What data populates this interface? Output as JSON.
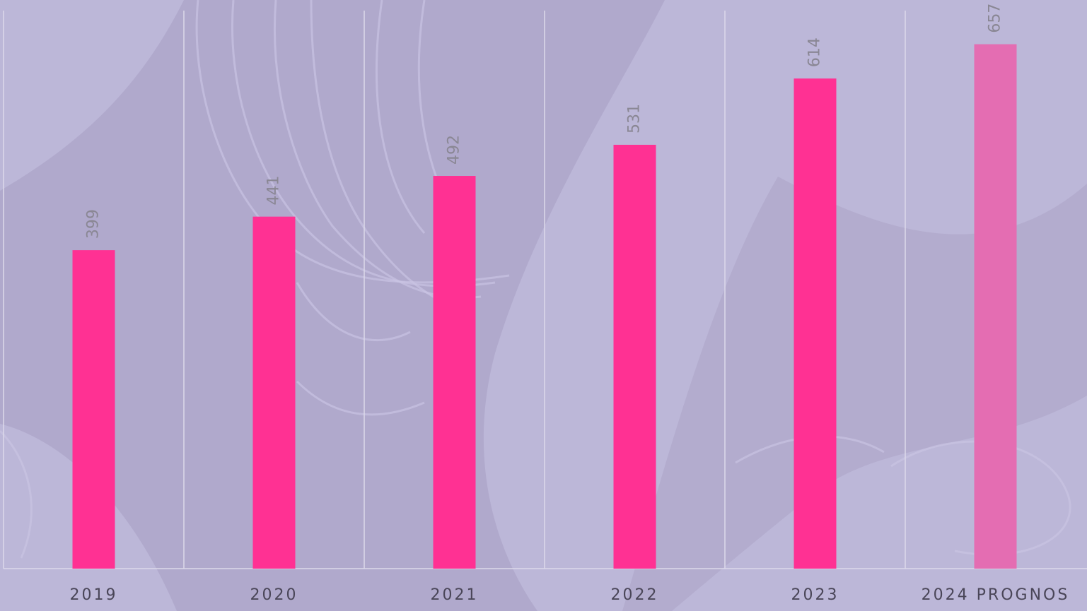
{
  "chart_data": {
    "type": "bar",
    "categories": [
      "2019",
      "2020",
      "2021",
      "2022",
      "2023",
      "2024 PROGNOS"
    ],
    "values": [
      399,
      441,
      492,
      531,
      614,
      657
    ],
    "colors": [
      "#ff3193",
      "#ff3193",
      "#ff3193",
      "#ff3193",
      "#ff3193",
      "#e46db2"
    ],
    "grid": false
  }
}
